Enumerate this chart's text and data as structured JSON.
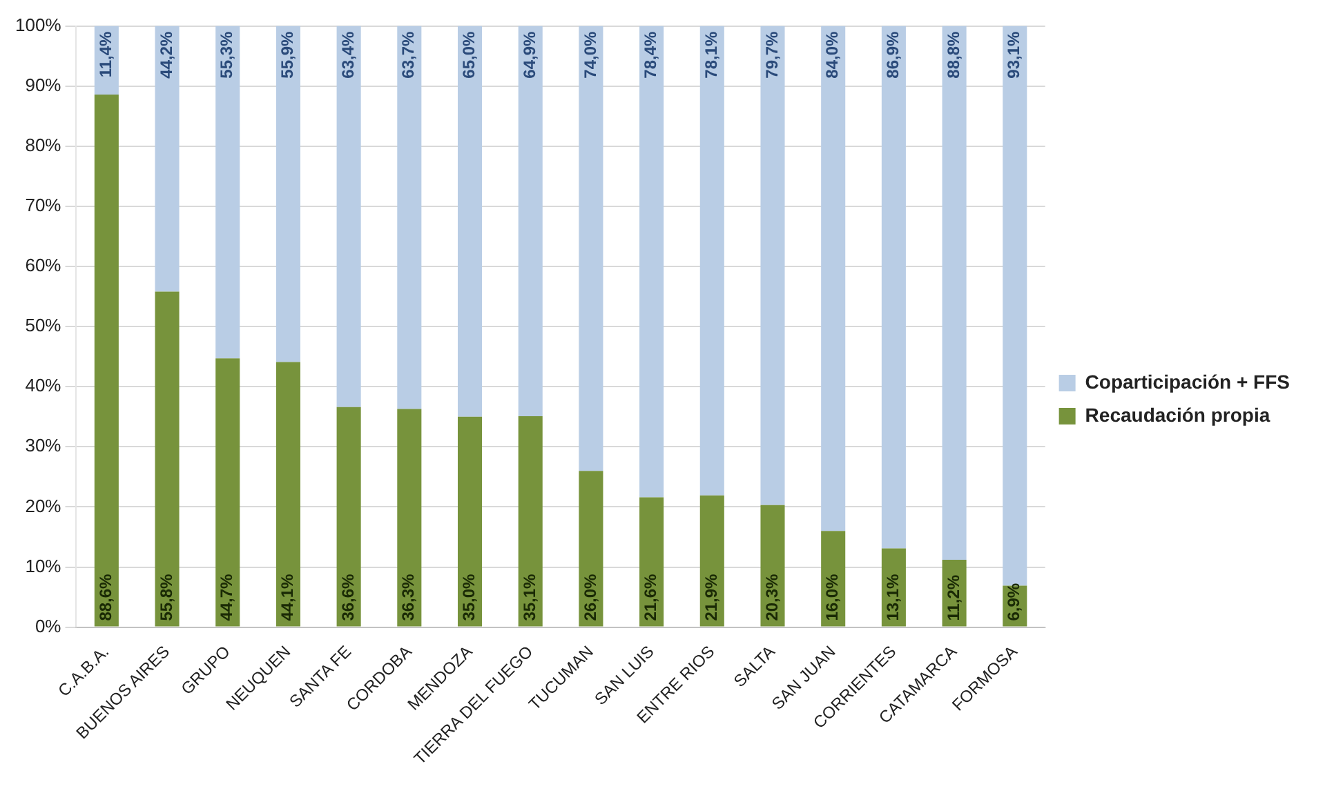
{
  "chart_data": {
    "type": "bar",
    "stacked": true,
    "categories": [
      "C.A.B.A.",
      "BUENOS AIRES",
      "GRUPO",
      "NEUQUEN",
      "SANTA FE",
      "CORDOBA",
      "MENDOZA",
      "TIERRA DEL FUEGO",
      "TUCUMAN",
      "SAN LUIS",
      "ENTRE RIOS",
      "SALTA",
      "SAN JUAN",
      "CORRIENTES",
      "CATAMARCA",
      "FORMOSA"
    ],
    "series": [
      {
        "name": "Recaudación propia",
        "color": "#77933c",
        "values": [
          88.6,
          55.8,
          44.7,
          44.1,
          36.6,
          36.3,
          35.0,
          35.1,
          26.0,
          21.6,
          21.9,
          20.3,
          16.0,
          13.1,
          11.2,
          6.9
        ],
        "value_labels": [
          "88,6%",
          "55,8%",
          "44,7%",
          "44,1%",
          "36,6%",
          "36,3%",
          "35,0%",
          "35,1%",
          "26,0%",
          "21,6%",
          "21,9%",
          "20,3%",
          "16,0%",
          "13,1%",
          "11,2%",
          "6,9%"
        ]
      },
      {
        "name": "Coparticipación + FFS",
        "color": "#b9cde5",
        "values": [
          11.4,
          44.2,
          55.3,
          55.9,
          63.4,
          63.7,
          65.0,
          64.9,
          74.0,
          78.4,
          78.1,
          79.7,
          84.0,
          86.9,
          88.8,
          93.1
        ],
        "value_labels": [
          "11,4%",
          "44,2%",
          "55,3%",
          "55,9%",
          "63,4%",
          "63,7%",
          "65,0%",
          "64,9%",
          "74,0%",
          "78,4%",
          "78,1%",
          "79,7%",
          "84,0%",
          "86,9%",
          "88,8%",
          "93,1%"
        ]
      }
    ],
    "ylim": [
      0,
      100
    ],
    "yticks": [
      {
        "value": 0,
        "label": "0%"
      },
      {
        "value": 10,
        "label": "10%"
      },
      {
        "value": 20,
        "label": "20%"
      },
      {
        "value": 30,
        "label": "30%"
      },
      {
        "value": 40,
        "label": "40%"
      },
      {
        "value": 50,
        "label": "50%"
      },
      {
        "value": 60,
        "label": "60%"
      },
      {
        "value": 70,
        "label": "70%"
      },
      {
        "value": 80,
        "label": "80%"
      },
      {
        "value": 90,
        "label": "90%"
      },
      {
        "value": 100,
        "label": "100%"
      }
    ],
    "grid": "y",
    "legend": "right"
  }
}
